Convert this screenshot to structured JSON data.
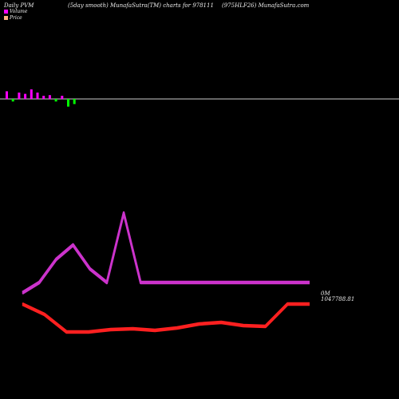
{
  "header": {
    "left": "Daily PVM",
    "middle": "(5day smooth) MunafaSutra(TM) charts for 978111",
    "right": "(975HLF26) MunafaSutra.com"
  },
  "legend": {
    "volume": "Volume",
    "price": "Price",
    "volume_color": "#ff00ff",
    "price_color": "#ffb080"
  },
  "colors": {
    "up": "#ff00ff",
    "down": "#00ff00",
    "volume_line": "#cc33cc",
    "price_line": "#ff2020",
    "baseline": "#cccccc"
  },
  "chart_data": {
    "type": "line",
    "pvm_bars": [
      2.4,
      -0.8,
      2.0,
      1.6,
      3.0,
      2.0,
      1.0,
      1.2,
      -0.8,
      1.0,
      -2.4,
      -1.6
    ],
    "volume_series": [
      9,
      22,
      51,
      69,
      39,
      22,
      109,
      22,
      22,
      22,
      22,
      22,
      22,
      22,
      22,
      22,
      22,
      22
    ],
    "price_series": [
      -5,
      -18,
      -40,
      -40,
      -37,
      -36,
      -38,
      -35,
      -30,
      -28,
      -32,
      -33,
      -5,
      -5
    ],
    "volume_label": "0M",
    "price_label": "1047788.81"
  }
}
